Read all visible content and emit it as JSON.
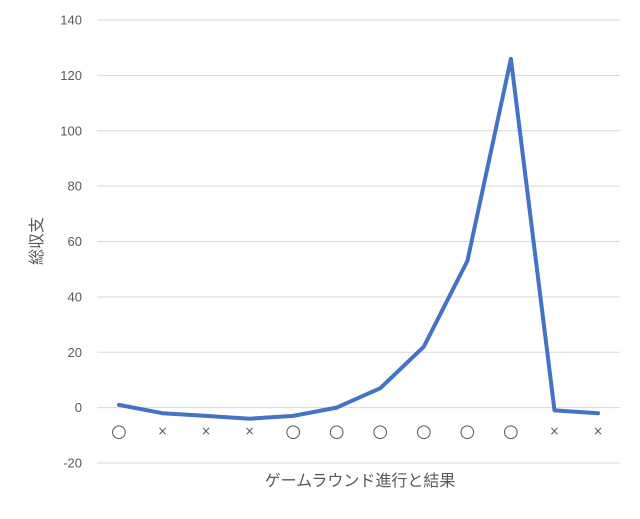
{
  "chart_data": {
    "type": "line",
    "title": "",
    "xlabel": "ゲームラウンド進行と結果",
    "ylabel": "総収支",
    "ylim": [
      -20,
      140
    ],
    "yticks": [
      -20,
      0,
      20,
      40,
      60,
      80,
      100,
      120,
      140
    ],
    "grid": true,
    "legend": "none",
    "categories": [
      "○",
      "×",
      "×",
      "×",
      "○",
      "○",
      "○",
      "○",
      "○",
      "○",
      "×",
      "×"
    ],
    "series": [
      {
        "color": "#4472c4",
        "values": [
          1,
          -2,
          -3,
          -4,
          -3,
          0,
          7,
          22,
          53,
          126,
          -1,
          -2
        ]
      }
    ]
  }
}
